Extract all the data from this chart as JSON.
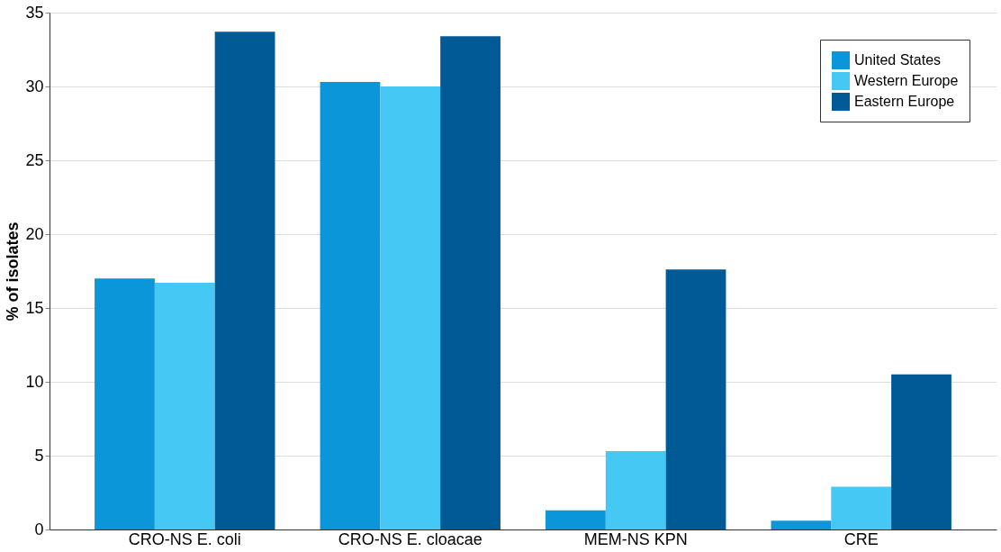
{
  "chart_data": {
    "type": "bar",
    "ylabel": "% of isolates",
    "categories": [
      "CRO-NS E. coli",
      "CRO-NS E. cloacae",
      "MEM-NS KPN",
      "CRE"
    ],
    "series": [
      {
        "name": "United States",
        "color": "#0a96d8",
        "values": [
          17.0,
          30.3,
          1.3,
          0.6
        ]
      },
      {
        "name": "Western Europe",
        "color": "#45c8f3",
        "values": [
          16.7,
          30.0,
          5.3,
          2.9
        ]
      },
      {
        "name": "Eastern Europe",
        "color": "#005a96",
        "values": [
          33.7,
          33.4,
          17.6,
          10.5
        ]
      }
    ],
    "ylim": [
      0,
      35
    ],
    "yticks": [
      0,
      5,
      10,
      15,
      20,
      25,
      30,
      35
    ],
    "grid": "y",
    "legend": "top right"
  }
}
